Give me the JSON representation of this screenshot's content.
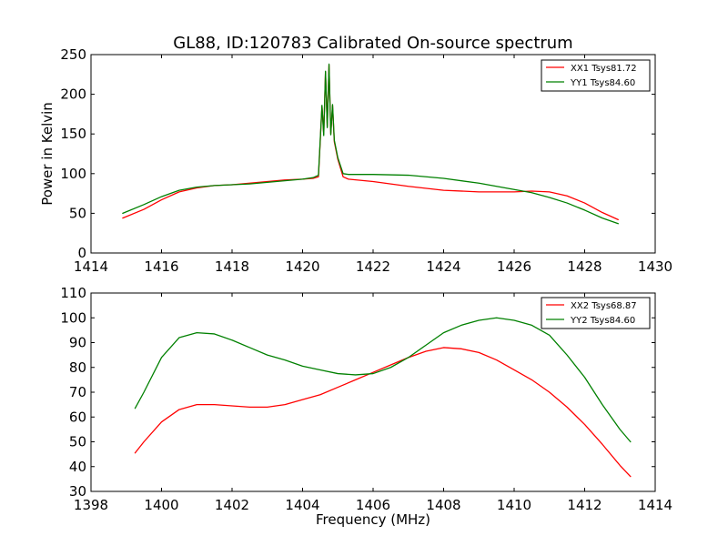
{
  "chart_data": [
    {
      "type": "line",
      "title": "GL88, ID:120783 Calibrated On-source spectrum",
      "xlabel": "",
      "ylabel": "Power in Kelvin",
      "xlim": [
        1414,
        1430
      ],
      "ylim": [
        0,
        250
      ],
      "xticks": [
        "1414",
        "1416",
        "1418",
        "1420",
        "1422",
        "1424",
        "1426",
        "1428",
        "1430"
      ],
      "yticks": [
        "0",
        "50",
        "100",
        "150",
        "200",
        "250"
      ],
      "grid": false,
      "legend_position": "top-right",
      "series": [
        {
          "name": "XX1 Tsys81.72",
          "color": "#ff0000",
          "points": [
            [
              1414.9,
              44
            ],
            [
              1415.5,
              55
            ],
            [
              1416.0,
              67
            ],
            [
              1416.5,
              77
            ],
            [
              1417.0,
              82
            ],
            [
              1417.5,
              85
            ],
            [
              1418.0,
              86
            ],
            [
              1418.5,
              88
            ],
            [
              1419.0,
              90
            ],
            [
              1419.5,
              92
            ],
            [
              1420.0,
              93
            ],
            [
              1420.3,
              94
            ],
            [
              1420.45,
              96
            ],
            [
              1420.5,
              140
            ],
            [
              1420.55,
              185
            ],
            [
              1420.6,
              150
            ],
            [
              1420.65,
              228
            ],
            [
              1420.7,
              160
            ],
            [
              1420.75,
              237
            ],
            [
              1420.8,
              150
            ],
            [
              1420.85,
              186
            ],
            [
              1420.9,
              140
            ],
            [
              1421.0,
              118
            ],
            [
              1421.15,
              96
            ],
            [
              1421.3,
              93
            ],
            [
              1422.0,
              90
            ],
            [
              1423.0,
              84
            ],
            [
              1424.0,
              79
            ],
            [
              1425.0,
              77
            ],
            [
              1426.0,
              77
            ],
            [
              1426.5,
              78
            ],
            [
              1427.0,
              77
            ],
            [
              1427.5,
              72
            ],
            [
              1428.0,
              63
            ],
            [
              1428.5,
              51
            ],
            [
              1428.95,
              42
            ]
          ]
        },
        {
          "name": "YY1 Tsys84.60",
          "color": "#008000",
          "points": [
            [
              1414.9,
              50
            ],
            [
              1415.5,
              61
            ],
            [
              1416.0,
              71
            ],
            [
              1416.5,
              79
            ],
            [
              1417.0,
              83
            ],
            [
              1417.5,
              85
            ],
            [
              1418.0,
              86
            ],
            [
              1418.5,
              87
            ],
            [
              1419.0,
              89
            ],
            [
              1419.5,
              91
            ],
            [
              1420.0,
              93
            ],
            [
              1420.3,
              95
            ],
            [
              1420.45,
              98
            ],
            [
              1420.5,
              142
            ],
            [
              1420.55,
              186
            ],
            [
              1420.6,
              148
            ],
            [
              1420.65,
              229
            ],
            [
              1420.7,
              158
            ],
            [
              1420.75,
              238
            ],
            [
              1420.8,
              149
            ],
            [
              1420.85,
              187
            ],
            [
              1420.9,
              142
            ],
            [
              1421.0,
              120
            ],
            [
              1421.15,
              100
            ],
            [
              1421.3,
              99
            ],
            [
              1422.0,
              99
            ],
            [
              1423.0,
              98
            ],
            [
              1424.0,
              94
            ],
            [
              1425.0,
              88
            ],
            [
              1426.0,
              80
            ],
            [
              1426.5,
              76
            ],
            [
              1427.0,
              70
            ],
            [
              1427.5,
              63
            ],
            [
              1428.0,
              54
            ],
            [
              1428.5,
              44
            ],
            [
              1428.95,
              37
            ]
          ]
        }
      ]
    },
    {
      "type": "line",
      "title": "",
      "xlabel": "Frequency (MHz)",
      "ylabel": "",
      "xlim": [
        1398,
        1414
      ],
      "ylim": [
        30,
        110
      ],
      "xticks": [
        "1398",
        "1400",
        "1402",
        "1404",
        "1406",
        "1408",
        "1410",
        "1412",
        "1414"
      ],
      "yticks": [
        "30",
        "40",
        "50",
        "60",
        "70",
        "80",
        "90",
        "100",
        "110"
      ],
      "grid": false,
      "legend_position": "top-right",
      "series": [
        {
          "name": "XX2 Tsys68.87",
          "color": "#ff0000",
          "points": [
            [
              1399.25,
              45.5
            ],
            [
              1399.5,
              50
            ],
            [
              1400.0,
              58
            ],
            [
              1400.5,
              63
            ],
            [
              1401.0,
              65
            ],
            [
              1401.5,
              65
            ],
            [
              1402.0,
              64.5
            ],
            [
              1402.5,
              64
            ],
            [
              1403.0,
              64
            ],
            [
              1403.5,
              65
            ],
            [
              1404.0,
              67
            ],
            [
              1404.5,
              69
            ],
            [
              1405.0,
              72
            ],
            [
              1405.5,
              75
            ],
            [
              1406.0,
              78
            ],
            [
              1406.5,
              81
            ],
            [
              1407.0,
              84
            ],
            [
              1407.5,
              86.5
            ],
            [
              1408.0,
              88
            ],
            [
              1408.5,
              87.5
            ],
            [
              1409.0,
              86
            ],
            [
              1409.5,
              83
            ],
            [
              1410.0,
              79
            ],
            [
              1410.5,
              75
            ],
            [
              1411.0,
              70
            ],
            [
              1411.5,
              64
            ],
            [
              1412.0,
              57
            ],
            [
              1412.5,
              49
            ],
            [
              1413.0,
              40.5
            ],
            [
              1413.3,
              36
            ]
          ]
        },
        {
          "name": "YY2 Tsys84.60",
          "color": "#008000",
          "points": [
            [
              1399.25,
              63.5
            ],
            [
              1399.5,
              70
            ],
            [
              1400.0,
              84
            ],
            [
              1400.5,
              92
            ],
            [
              1401.0,
              94
            ],
            [
              1401.5,
              93.5
            ],
            [
              1402.0,
              91
            ],
            [
              1402.5,
              88
            ],
            [
              1403.0,
              85
            ],
            [
              1403.5,
              83
            ],
            [
              1404.0,
              80.5
            ],
            [
              1404.5,
              79
            ],
            [
              1405.0,
              77.5
            ],
            [
              1405.5,
              77
            ],
            [
              1406.0,
              77.5
            ],
            [
              1406.5,
              80
            ],
            [
              1407.0,
              84
            ],
            [
              1407.5,
              89
            ],
            [
              1408.0,
              94
            ],
            [
              1408.5,
              97
            ],
            [
              1409.0,
              99
            ],
            [
              1409.5,
              100
            ],
            [
              1410.0,
              99
            ],
            [
              1410.5,
              97
            ],
            [
              1411.0,
              93
            ],
            [
              1411.5,
              85
            ],
            [
              1412.0,
              76
            ],
            [
              1412.5,
              65
            ],
            [
              1413.0,
              55
            ],
            [
              1413.3,
              50
            ]
          ]
        }
      ]
    }
  ]
}
